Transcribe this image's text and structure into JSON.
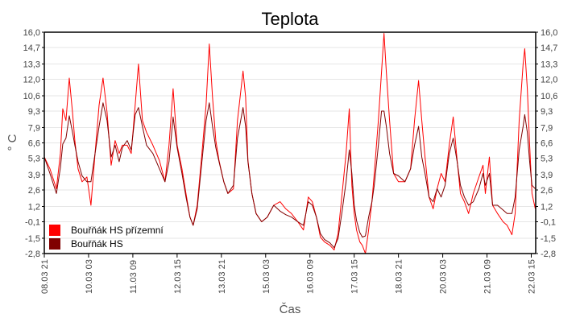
{
  "chart_data": {
    "type": "line",
    "title": "Teplota",
    "xlabel": "Čas",
    "ylabel": "° C",
    "ylim": [
      -2.8,
      16.0
    ],
    "xlim_hours": [
      0,
      333
    ],
    "x_unit": "hours since 08.03 21",
    "yticks": [
      "16,0",
      "14,7",
      "13,3",
      "12,0",
      "10,6",
      "9,3",
      "7,9",
      "6,6",
      "5,3",
      "3,9",
      "2,6",
      "1,2",
      "-0,1",
      "-1,5",
      "-2,8"
    ],
    "ytick_values": [
      16.0,
      14.7,
      13.3,
      12.0,
      10.6,
      9.3,
      7.9,
      6.6,
      5.3,
      3.9,
      2.6,
      1.2,
      -0.1,
      -1.5,
      -2.8
    ],
    "xticks": [
      "08.03 21",
      "10.03 03",
      "11.03 09",
      "12.03 15",
      "13.03 21",
      "15.03 03",
      "16.03 09",
      "17.03 15",
      "18.03 21",
      "20.03 03",
      "21.03 09",
      "22.03 15"
    ],
    "xtick_hours": [
      0,
      30,
      60,
      90,
      120,
      150,
      180,
      210,
      240,
      270,
      300,
      330
    ],
    "grid": true,
    "legend_position": "bottom-left",
    "series": [
      {
        "name": "Bouřňák HS přízemní",
        "color": "#ff0000",
        "points": [
          [
            0,
            5.4
          ],
          [
            3.8,
            4.4
          ],
          [
            8.2,
            2.7
          ],
          [
            10.9,
            5.7
          ],
          [
            12.5,
            9.5
          ],
          [
            14.7,
            8.5
          ],
          [
            16.9,
            12.1
          ],
          [
            19.1,
            9.2
          ],
          [
            20.7,
            6.8
          ],
          [
            22.9,
            4.4
          ],
          [
            25.6,
            3.3
          ],
          [
            28.9,
            3.7
          ],
          [
            31.6,
            1.3
          ],
          [
            34.4,
            5.7
          ],
          [
            37.1,
            9.8
          ],
          [
            39.8,
            12.1
          ],
          [
            42.5,
            9.2
          ],
          [
            45.3,
            4.7
          ],
          [
            48,
            6.8
          ],
          [
            50.7,
            5.7
          ],
          [
            52.9,
            6.4
          ],
          [
            56.2,
            6.4
          ],
          [
            58.9,
            5.7
          ],
          [
            61.6,
            9.8
          ],
          [
            63.8,
            13.3
          ],
          [
            66.5,
            8.5
          ],
          [
            69.3,
            7.5
          ],
          [
            73.6,
            6.4
          ],
          [
            78,
            5.1
          ],
          [
            81.8,
            3.3
          ],
          [
            84.5,
            6.4
          ],
          [
            87.3,
            11.2
          ],
          [
            90,
            6.4
          ],
          [
            93.3,
            4.4
          ],
          [
            96,
            2.3
          ],
          [
            98.7,
            0.3
          ],
          [
            100.9,
            -0.4
          ],
          [
            103.6,
            1.3
          ],
          [
            106.4,
            5.1
          ],
          [
            109.6,
            9.8
          ],
          [
            111.8,
            15.0
          ],
          [
            114,
            10.5
          ],
          [
            116.2,
            6.8
          ],
          [
            118.4,
            5.1
          ],
          [
            121.6,
            3.3
          ],
          [
            124.4,
            2.3
          ],
          [
            128.2,
            2.7
          ],
          [
            130.9,
            8.5
          ],
          [
            134.7,
            12.7
          ],
          [
            136.4,
            10.5
          ],
          [
            138,
            5.1
          ],
          [
            140.7,
            2.3
          ],
          [
            143.5,
            0.6
          ],
          [
            147.3,
            -0.1
          ],
          [
            151.1,
            0.3
          ],
          [
            155.5,
            1.3
          ],
          [
            159.8,
            1.6
          ],
          [
            163.6,
            1.0
          ],
          [
            167.5,
            0.6
          ],
          [
            171.8,
            -0.1
          ],
          [
            175.6,
            -0.8
          ],
          [
            178.9,
            2.0
          ],
          [
            181.6,
            1.6
          ],
          [
            184.4,
            0.3
          ],
          [
            187.1,
            -1.4
          ],
          [
            189.8,
            -1.8
          ],
          [
            193.6,
            -2.1
          ],
          [
            196.4,
            -2.5
          ],
          [
            199.1,
            -1.1
          ],
          [
            201.8,
            2.3
          ],
          [
            204.5,
            5.7
          ],
          [
            206.7,
            9.5
          ],
          [
            208.4,
            3.0
          ],
          [
            210,
            0.6
          ],
          [
            211.6,
            -0.8
          ],
          [
            213.8,
            -1.8
          ],
          [
            215.5,
            -2.1
          ],
          [
            217.6,
            -2.8
          ],
          [
            219.8,
            -0.8
          ],
          [
            222,
            1.6
          ],
          [
            223.6,
            4.0
          ],
          [
            226.4,
            8.5
          ],
          [
            228.5,
            12.6
          ],
          [
            230.2,
            15.9
          ],
          [
            231.8,
            12.6
          ],
          [
            234,
            8.5
          ],
          [
            236.7,
            4.0
          ],
          [
            240,
            3.3
          ],
          [
            244.4,
            3.3
          ],
          [
            248.2,
            4.4
          ],
          [
            250.9,
            8.5
          ],
          [
            253.6,
            11.9
          ],
          [
            255.8,
            8.5
          ],
          [
            258,
            5.4
          ],
          [
            260.7,
            2.0
          ],
          [
            263.5,
            1.0
          ],
          [
            266.2,
            2.7
          ],
          [
            268.9,
            4.0
          ],
          [
            271.6,
            3.3
          ],
          [
            274.4,
            6.4
          ],
          [
            277.1,
            8.8
          ],
          [
            279.8,
            5.1
          ],
          [
            282,
            2.3
          ],
          [
            284.7,
            1.6
          ],
          [
            287.5,
            0.6
          ],
          [
            290.7,
            2.3
          ],
          [
            294.5,
            3.7
          ],
          [
            297.3,
            4.7
          ],
          [
            298.9,
            2.3
          ],
          [
            301.6,
            5.4
          ],
          [
            303.8,
            1.3
          ],
          [
            307.1,
            0.6
          ],
          [
            310.9,
            -0.1
          ],
          [
            313.6,
            -0.4
          ],
          [
            316.9,
            -1.2
          ],
          [
            319.1,
            0.6
          ],
          [
            321.8,
            8.5
          ],
          [
            324.5,
            13.3
          ],
          [
            325.6,
            14.6
          ],
          [
            327.3,
            11.2
          ],
          [
            328.9,
            6.4
          ],
          [
            330.5,
            2.3
          ],
          [
            332.7,
            1.0
          ]
        ]
      },
      {
        "name": "Bouřňák HS",
        "color": "#800000",
        "points": [
          [
            0,
            5.4
          ],
          [
            3.8,
            4.0
          ],
          [
            8.2,
            2.3
          ],
          [
            10.9,
            4.5
          ],
          [
            12.5,
            6.5
          ],
          [
            14.7,
            7.0
          ],
          [
            16.9,
            8.9
          ],
          [
            19.1,
            7.5
          ],
          [
            20.7,
            6.4
          ],
          [
            22.9,
            5.0
          ],
          [
            25.6,
            3.8
          ],
          [
            28.9,
            3.3
          ],
          [
            31.6,
            3.3
          ],
          [
            34.4,
            5.7
          ],
          [
            37.1,
            8.0
          ],
          [
            39.8,
            10.0
          ],
          [
            42.5,
            8.5
          ],
          [
            45.3,
            5.4
          ],
          [
            48,
            6.4
          ],
          [
            50.7,
            5.0
          ],
          [
            52.9,
            6.2
          ],
          [
            56.2,
            6.8
          ],
          [
            58.9,
            6.0
          ],
          [
            61.6,
            9.0
          ],
          [
            63.8,
            9.6
          ],
          [
            66.5,
            8.0
          ],
          [
            69.3,
            6.4
          ],
          [
            73.6,
            5.7
          ],
          [
            78,
            4.4
          ],
          [
            81.8,
            3.3
          ],
          [
            84.5,
            5.0
          ],
          [
            87.3,
            8.8
          ],
          [
            90,
            6.2
          ],
          [
            93.3,
            4.0
          ],
          [
            96,
            2.0
          ],
          [
            98.7,
            0.3
          ],
          [
            100.9,
            -0.4
          ],
          [
            103.6,
            1.0
          ],
          [
            106.4,
            4.5
          ],
          [
            109.6,
            8.5
          ],
          [
            111.8,
            10.0
          ],
          [
            114,
            8.0
          ],
          [
            116.2,
            6.2
          ],
          [
            118.4,
            5.0
          ],
          [
            121.6,
            3.3
          ],
          [
            124.4,
            2.3
          ],
          [
            128.2,
            3.0
          ],
          [
            130.9,
            7.0
          ],
          [
            134.7,
            9.6
          ],
          [
            136.4,
            8.0
          ],
          [
            138,
            5.0
          ],
          [
            140.7,
            2.3
          ],
          [
            143.5,
            0.6
          ],
          [
            147.3,
            -0.1
          ],
          [
            151.1,
            0.3
          ],
          [
            155.5,
            1.3
          ],
          [
            159.8,
            0.8
          ],
          [
            163.6,
            0.5
          ],
          [
            167.5,
            0.3
          ],
          [
            171.8,
            -0.1
          ],
          [
            175.6,
            -0.4
          ],
          [
            178.9,
            1.6
          ],
          [
            181.6,
            1.3
          ],
          [
            184.4,
            0.3
          ],
          [
            187.1,
            -1.1
          ],
          [
            189.8,
            -1.6
          ],
          [
            193.6,
            -1.9
          ],
          [
            196.4,
            -2.3
          ],
          [
            199.1,
            -1.5
          ],
          [
            201.8,
            0.8
          ],
          [
            204.5,
            3.3
          ],
          [
            206.7,
            6.0
          ],
          [
            208.4,
            4.0
          ],
          [
            210,
            1.3
          ],
          [
            211.6,
            0.0
          ],
          [
            213.8,
            -1.0
          ],
          [
            215.5,
            -1.4
          ],
          [
            217.6,
            -1.3
          ],
          [
            219.8,
            0.3
          ],
          [
            222,
            1.6
          ],
          [
            223.6,
            3.0
          ],
          [
            226.4,
            6.4
          ],
          [
            228.5,
            9.3
          ],
          [
            230.2,
            9.3
          ],
          [
            231.8,
            8.0
          ],
          [
            234,
            5.7
          ],
          [
            236.7,
            4.0
          ],
          [
            240,
            3.8
          ],
          [
            244.4,
            3.3
          ],
          [
            248.2,
            4.4
          ],
          [
            250.9,
            6.4
          ],
          [
            253.6,
            8.0
          ],
          [
            255.8,
            5.4
          ],
          [
            258,
            4.0
          ],
          [
            260.7,
            2.0
          ],
          [
            263.5,
            1.6
          ],
          [
            266.2,
            2.7
          ],
          [
            268.9,
            2.0
          ],
          [
            271.6,
            3.0
          ],
          [
            274.4,
            5.7
          ],
          [
            277.1,
            7.0
          ],
          [
            279.8,
            5.0
          ],
          [
            282,
            3.0
          ],
          [
            284.7,
            2.0
          ],
          [
            287.5,
            1.3
          ],
          [
            290.7,
            1.6
          ],
          [
            294.5,
            2.7
          ],
          [
            297.3,
            4.0
          ],
          [
            298.9,
            3.0
          ],
          [
            301.6,
            4.0
          ],
          [
            303.8,
            1.3
          ],
          [
            307.1,
            1.3
          ],
          [
            310.9,
            0.9
          ],
          [
            313.6,
            0.6
          ],
          [
            316.9,
            0.6
          ],
          [
            319.1,
            2.0
          ],
          [
            321.8,
            6.0
          ],
          [
            324.5,
            8.0
          ],
          [
            325.6,
            9.0
          ],
          [
            327.3,
            7.5
          ],
          [
            328.9,
            5.0
          ],
          [
            330.5,
            3.0
          ],
          [
            332.7,
            2.7
          ]
        ]
      }
    ]
  }
}
